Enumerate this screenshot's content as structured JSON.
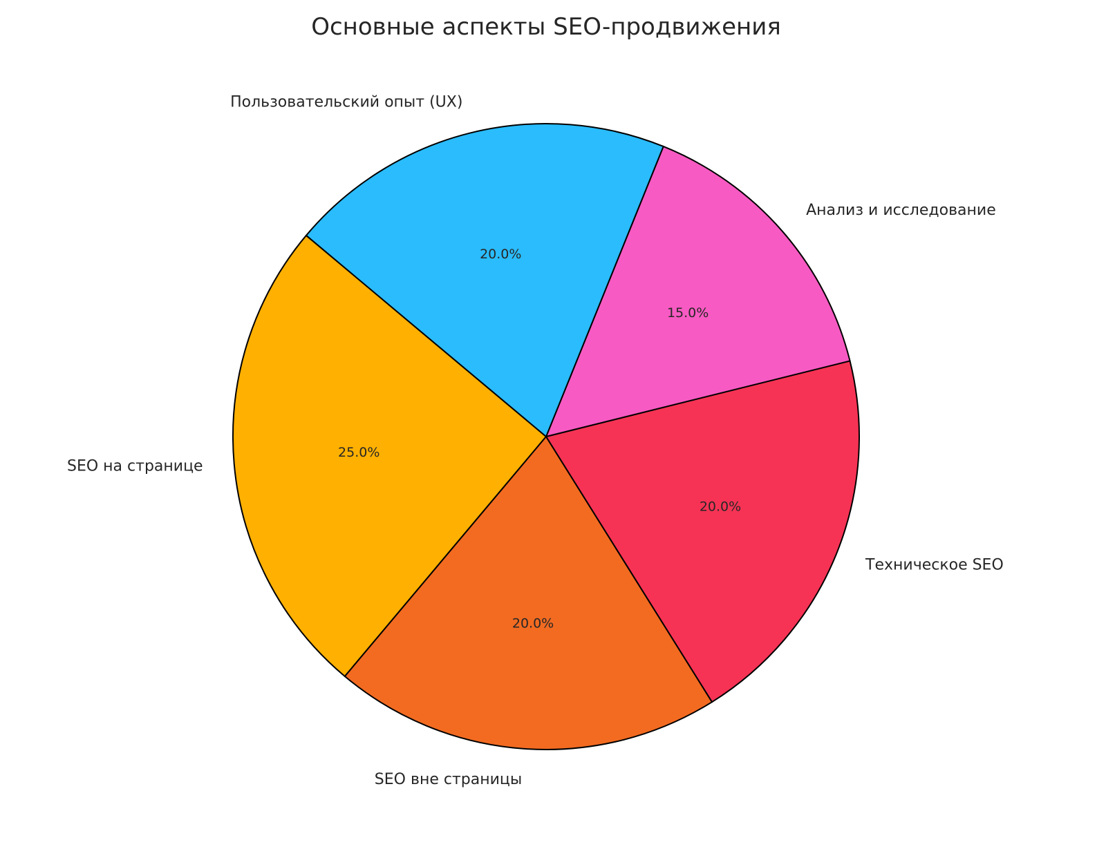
{
  "chart_data": {
    "type": "pie",
    "title": "Основные аспекты SEO-продвижения",
    "start_angle_deg": 140,
    "direction": "counterclockwise",
    "categories": [
      "SEO на странице",
      "SEO вне страницы",
      "Техническое SEO",
      "Анализ и исследование",
      "Пользовательский опыт (UX)"
    ],
    "values": [
      25,
      20,
      20,
      15,
      20
    ],
    "data_labels": [
      "25.0%",
      "20.0%",
      "20.0%",
      "15.0%",
      "20.0%"
    ],
    "colors": [
      "#ffb000",
      "#f26b21",
      "#f63355",
      "#f75ac2",
      "#2abcfc"
    ],
    "edge_color": "#000000",
    "legend": "none"
  }
}
